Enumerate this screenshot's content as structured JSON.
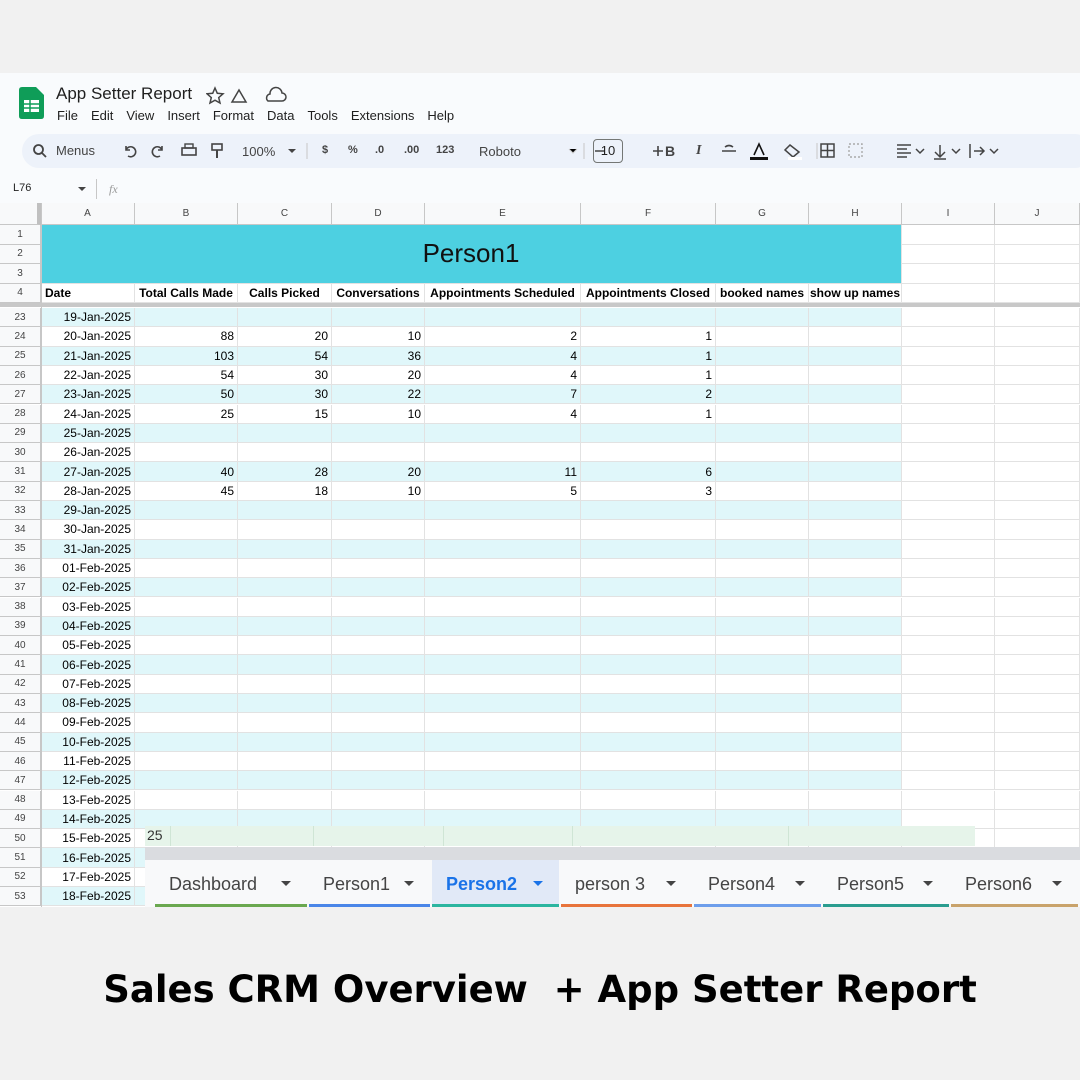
{
  "app": {
    "title": "App Setter Report",
    "menu": [
      "File",
      "Edit",
      "View",
      "Insert",
      "Format",
      "Data",
      "Tools",
      "Extensions",
      "Help"
    ]
  },
  "toolbar": {
    "search": "Menus",
    "zoom": "100%",
    "formats": [
      "$",
      "%",
      ".0",
      ".00",
      "123"
    ],
    "font": "Roboto",
    "font_size": 10,
    "text_styles": [
      "B",
      "I"
    ]
  },
  "formula_bar": {
    "cell": "L76",
    "fx": "fx"
  },
  "sheet": {
    "columns": [
      "A",
      "B",
      "C",
      "D",
      "E",
      "F",
      "G",
      "H",
      "I",
      "J"
    ],
    "title": "Person1",
    "title_color": "#4dd0e1",
    "stripe_color": "#e0f7fa",
    "top_rows": [
      1,
      2,
      3,
      4
    ],
    "headers": [
      "Date",
      "Total Calls Made",
      "Calls Picked",
      "Conversations",
      "Appointments Scheduled",
      "Appointments Closed",
      "booked names",
      "show up names"
    ],
    "rows": [
      {
        "n": 23,
        "date": "19-Jan-2025"
      },
      {
        "n": 24,
        "date": "20-Jan-2025",
        "values": [
          88,
          20,
          10,
          2,
          1
        ]
      },
      {
        "n": 25,
        "date": "21-Jan-2025",
        "values": [
          103,
          54,
          36,
          4,
          1
        ]
      },
      {
        "n": 26,
        "date": "22-Jan-2025",
        "values": [
          54,
          30,
          20,
          4,
          1
        ]
      },
      {
        "n": 27,
        "date": "23-Jan-2025",
        "values": [
          50,
          30,
          22,
          7,
          2
        ]
      },
      {
        "n": 28,
        "date": "24-Jan-2025",
        "values": [
          25,
          15,
          10,
          4,
          1
        ]
      },
      {
        "n": 29,
        "date": "25-Jan-2025"
      },
      {
        "n": 30,
        "date": "26-Jan-2025"
      },
      {
        "n": 31,
        "date": "27-Jan-2025",
        "values": [
          40,
          28,
          20,
          11,
          6
        ]
      },
      {
        "n": 32,
        "date": "28-Jan-2025",
        "values": [
          45,
          18,
          10,
          5,
          3
        ]
      },
      {
        "n": 33,
        "date": "29-Jan-2025"
      },
      {
        "n": 34,
        "date": "30-Jan-2025"
      },
      {
        "n": 35,
        "date": "31-Jan-2025"
      },
      {
        "n": 36,
        "date": "01-Feb-2025"
      },
      {
        "n": 37,
        "date": "02-Feb-2025"
      },
      {
        "n": 38,
        "date": "03-Feb-2025"
      },
      {
        "n": 39,
        "date": "04-Feb-2025"
      },
      {
        "n": 40,
        "date": "05-Feb-2025"
      },
      {
        "n": 41,
        "date": "06-Feb-2025"
      },
      {
        "n": 42,
        "date": "07-Feb-2025"
      },
      {
        "n": 43,
        "date": "08-Feb-2025"
      },
      {
        "n": 44,
        "date": "09-Feb-2025"
      },
      {
        "n": 45,
        "date": "10-Feb-2025"
      },
      {
        "n": 46,
        "date": "11-Feb-2025"
      },
      {
        "n": 47,
        "date": "12-Feb-2025"
      },
      {
        "n": 48,
        "date": "13-Feb-2025"
      },
      {
        "n": 49,
        "date": "14-Feb-2025"
      },
      {
        "n": 50,
        "date": "15-Feb-2025"
      },
      {
        "n": 51,
        "date": "16-Feb-2025"
      },
      {
        "n": 52,
        "date": "17-Feb-2025"
      },
      {
        "n": 53,
        "date": "18-Feb-2025"
      }
    ]
  },
  "overlay": {
    "cell": 25
  },
  "tabs": [
    {
      "name": "Dashboard",
      "color": "#6aa84f"
    },
    {
      "name": "Person1",
      "color": "#4a86e8"
    },
    {
      "name": "Person2",
      "color": "#2bb5a0",
      "active": true
    },
    {
      "name": "person 3",
      "color": "#e8743b"
    },
    {
      "name": "Person4",
      "color": "#6d9eeb"
    },
    {
      "name": "Person5",
      "color": "#2a9d8f"
    },
    {
      "name": "Person6",
      "color": "#c9a36b"
    }
  ],
  "caption": "Sales CRM Overview  + App Setter Report"
}
